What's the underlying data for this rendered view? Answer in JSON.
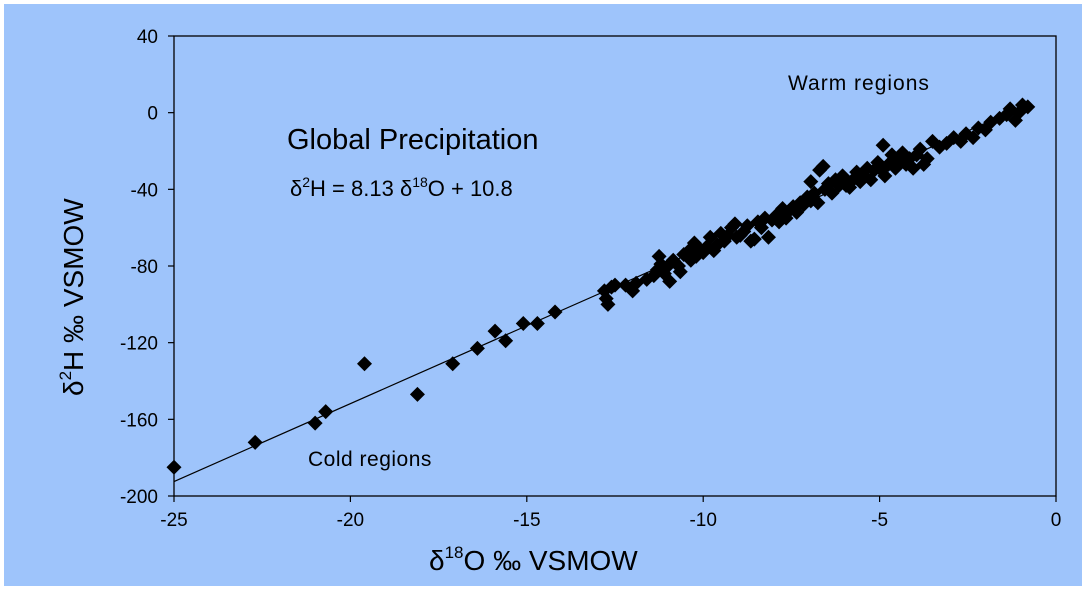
{
  "chart_data": {
    "type": "scatter",
    "title": "Global Precipitation",
    "equation": {
      "lhs_sup": "2",
      "lhs_main": "H = 8.13 ",
      "rhs_sup": "18",
      "rhs_main": "O + 10.8",
      "delta": "δ"
    },
    "xlabel": {
      "delta": "δ",
      "sup": "18",
      "main": "O ‰ VSMOW"
    },
    "ylabel": {
      "delta": "δ",
      "sup": "2",
      "main": "H ‰ VSMOW"
    },
    "xlim": [
      -25,
      0
    ],
    "ylim": [
      -200,
      40
    ],
    "x_ticks": [
      "-25",
      "-20",
      "-15",
      "-10",
      "-5",
      "0"
    ],
    "y_ticks": [
      "40",
      "0",
      "-40",
      "-80",
      "-120",
      "-160",
      "-200"
    ],
    "x_tick_values": [
      -25,
      -20,
      -15,
      -10,
      -5,
      0
    ],
    "y_tick_values": [
      40,
      0,
      -40,
      -80,
      -120,
      -160,
      -200
    ],
    "annotations": {
      "warm": "Warm regions",
      "cold": "Cold regions"
    },
    "fit_line": {
      "slope": 8.13,
      "intercept": 10.8,
      "x_range": [
        -25,
        -0.8
      ]
    },
    "colors": {
      "background": "#9ec4fb",
      "plot_area": "#9ec4fb",
      "markers": "#000000",
      "line": "#000000"
    },
    "series": [
      {
        "points": [
          [
            -25.0,
            -185
          ],
          [
            -22.7,
            -172
          ],
          [
            -21.0,
            -162
          ],
          [
            -20.7,
            -156
          ],
          [
            -19.6,
            -131
          ],
          [
            -18.1,
            -147
          ],
          [
            -17.1,
            -131
          ],
          [
            -16.4,
            -123
          ],
          [
            -15.9,
            -114
          ],
          [
            -15.6,
            -119
          ],
          [
            -15.1,
            -110
          ],
          [
            -14.7,
            -110
          ],
          [
            -14.2,
            -104
          ],
          [
            -12.8,
            -93
          ],
          [
            -12.75,
            -97
          ],
          [
            -12.7,
            -100
          ],
          [
            -12.6,
            -91
          ],
          [
            -12.5,
            -90
          ],
          [
            -12.2,
            -90
          ],
          [
            -12.0,
            -93
          ],
          [
            -11.9,
            -89
          ],
          [
            -11.6,
            -87
          ],
          [
            -11.4,
            -85
          ],
          [
            -11.3,
            -82
          ],
          [
            -11.25,
            -75
          ],
          [
            -11.2,
            -79
          ],
          [
            -11.1,
            -84
          ],
          [
            -11.0,
            -80
          ],
          [
            -10.95,
            -88
          ],
          [
            -10.85,
            -77
          ],
          [
            -10.7,
            -80
          ],
          [
            -10.65,
            -83
          ],
          [
            -10.55,
            -74
          ],
          [
            -10.4,
            -72
          ],
          [
            -10.35,
            -77
          ],
          [
            -10.25,
            -68
          ],
          [
            -10.2,
            -75
          ],
          [
            -10.1,
            -71
          ],
          [
            -10.0,
            -73
          ],
          [
            -9.9,
            -70
          ],
          [
            -9.8,
            -65
          ],
          [
            -9.7,
            -72
          ],
          [
            -9.6,
            -69
          ],
          [
            -9.5,
            -63
          ],
          [
            -9.4,
            -67
          ],
          [
            -9.3,
            -64
          ],
          [
            -9.2,
            -60
          ],
          [
            -9.1,
            -58
          ],
          [
            -9.05,
            -65
          ],
          [
            -8.95,
            -64
          ],
          [
            -8.85,
            -62
          ],
          [
            -8.75,
            -59
          ],
          [
            -8.65,
            -67
          ],
          [
            -8.55,
            -66
          ],
          [
            -8.45,
            -57
          ],
          [
            -8.35,
            -60
          ],
          [
            -8.25,
            -55
          ],
          [
            -8.15,
            -65
          ],
          [
            -8.05,
            -56
          ],
          [
            -7.95,
            -54
          ],
          [
            -7.85,
            -57
          ],
          [
            -7.75,
            -50
          ],
          [
            -7.65,
            -55
          ],
          [
            -7.55,
            -51
          ],
          [
            -7.45,
            -49
          ],
          [
            -7.35,
            -52
          ],
          [
            -7.25,
            -47
          ],
          [
            -7.15,
            -48
          ],
          [
            -7.05,
            -44
          ],
          [
            -6.95,
            -36
          ],
          [
            -6.95,
            -46
          ],
          [
            -6.85,
            -42
          ],
          [
            -6.75,
            -47
          ],
          [
            -6.7,
            -30
          ],
          [
            -6.6,
            -28
          ],
          [
            -6.55,
            -40
          ],
          [
            -6.45,
            -37
          ],
          [
            -6.35,
            -42
          ],
          [
            -6.25,
            -35
          ],
          [
            -6.15,
            -38
          ],
          [
            -6.05,
            -33
          ],
          [
            -5.95,
            -38
          ],
          [
            -5.85,
            -39
          ],
          [
            -5.75,
            -35
          ],
          [
            -5.65,
            -31
          ],
          [
            -5.55,
            -36
          ],
          [
            -5.45,
            -33
          ],
          [
            -5.35,
            -29
          ],
          [
            -5.25,
            -35
          ],
          [
            -5.15,
            -30
          ],
          [
            -5.05,
            -26
          ],
          [
            -4.95,
            -30
          ],
          [
            -4.9,
            -17
          ],
          [
            -4.85,
            -33
          ],
          [
            -4.75,
            -27
          ],
          [
            -4.65,
            -22
          ],
          [
            -4.55,
            -29
          ],
          [
            -4.45,
            -25
          ],
          [
            -4.35,
            -21
          ],
          [
            -4.25,
            -27
          ],
          [
            -4.15,
            -24
          ],
          [
            -4.05,
            -29
          ],
          [
            -3.95,
            -22
          ],
          [
            -3.85,
            -19
          ],
          [
            -3.75,
            -27
          ],
          [
            -3.65,
            -24
          ],
          [
            -3.5,
            -15
          ],
          [
            -3.3,
            -18
          ],
          [
            -3.1,
            -16
          ],
          [
            -2.9,
            -13
          ],
          [
            -2.7,
            -15
          ],
          [
            -2.55,
            -11
          ],
          [
            -2.35,
            -13
          ],
          [
            -2.2,
            -8
          ],
          [
            -2.0,
            -9
          ],
          [
            -1.85,
            -5
          ],
          [
            -1.6,
            -3
          ],
          [
            -1.4,
            -1
          ],
          [
            -1.3,
            2
          ],
          [
            -1.15,
            -4
          ],
          [
            -1.05,
            0
          ],
          [
            -0.95,
            4
          ],
          [
            -0.8,
            3
          ]
        ]
      }
    ]
  }
}
